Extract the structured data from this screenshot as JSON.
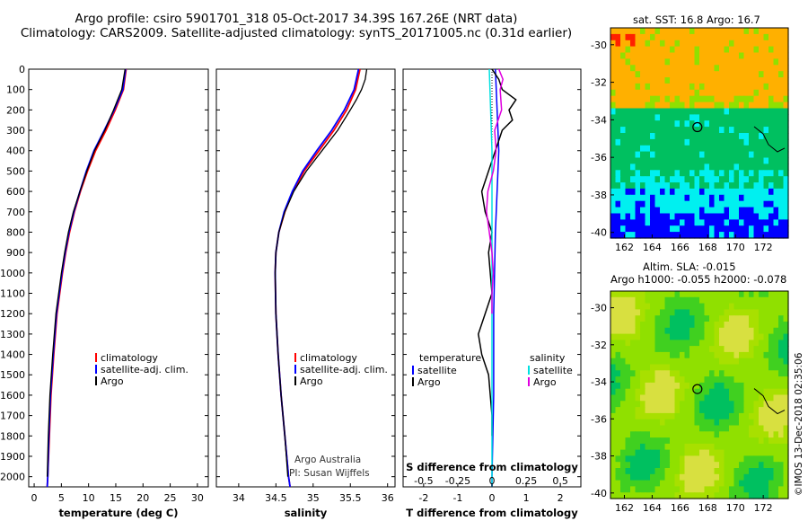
{
  "header": {
    "title_line1": "Argo profile: csiro 5901701_318 05-Oct-2017 34.39S 167.26E (NRT data)",
    "title_line2": "Climatology: CARS2009. Satellite-adjusted climatology: synTS_20171005.nc (0.31d earlier)"
  },
  "maps": {
    "sst_title": "sat. SST: 16.8 Argo: 16.7",
    "sla_title_line1": "Altim. SLA: -0.015",
    "sla_title_line2": "Argo h1000: -0.055 h2000: -0.078",
    "lon_ticks": [
      "162",
      "164",
      "166",
      "168",
      "170",
      "172"
    ],
    "lat_ticks": [
      "-30",
      "-32",
      "-34",
      "-36",
      "-38",
      "-40"
    ],
    "colors": {
      "warm": "#ffb000",
      "hot": "#ff2000",
      "green": "#00c060",
      "lightgreen": "#90e000",
      "cyan": "#00f0f0",
      "blue": "#0000ff"
    }
  },
  "credits": {
    "line1": "Argo Australia",
    "line2": "PI: Susan Wijffels",
    "imos": "©IMOS 13-Dec-2018 02:35:06"
  },
  "legends": {
    "temperature_panel": [
      "climatology",
      "satellite-adj. clim.",
      "Argo"
    ],
    "salinity_panel": [
      "climatology",
      "satellite-adj. clim.",
      "Argo"
    ],
    "diff_panel": {
      "temp_heading": "temperature",
      "sal_heading": "salinity",
      "temp_items": [
        "satellite",
        "Argo"
      ],
      "sal_items": [
        "satellite",
        "Argo"
      ]
    }
  },
  "chart_data": [
    {
      "type": "line",
      "name": "temperature",
      "xlabel": "temperature (deg C)",
      "ylabel": "",
      "xlim": [
        -1,
        32
      ],
      "ylim": [
        2050,
        0
      ],
      "xticks": [
        0,
        5,
        10,
        15,
        20,
        25,
        30
      ],
      "yticks": [
        0,
        100,
        200,
        300,
        400,
        500,
        600,
        700,
        800,
        900,
        1000,
        1100,
        1200,
        1300,
        1400,
        1500,
        1600,
        1700,
        1800,
        1900,
        2000
      ],
      "series": [
        {
          "name": "climatology",
          "color": "#ff0000",
          "depth": [
            0,
            100,
            200,
            300,
            400,
            500,
            600,
            700,
            800,
            900,
            1000,
            1200,
            1400,
            1600,
            1800,
            2000,
            2050
          ],
          "values": [
            16.9,
            16.4,
            14.9,
            13.2,
            11.3,
            9.8,
            8.5,
            7.4,
            6.5,
            5.8,
            5.2,
            4.2,
            3.6,
            3.1,
            2.8,
            2.5,
            2.4
          ]
        },
        {
          "name": "satellite-adj. clim.",
          "color": "#0000ff",
          "depth": [
            0,
            100,
            200,
            300,
            400,
            500,
            600,
            700,
            800,
            900,
            1000,
            1200,
            1400,
            1600,
            1800,
            2000,
            2050
          ],
          "values": [
            16.8,
            16.3,
            14.7,
            12.9,
            11.0,
            9.6,
            8.4,
            7.3,
            6.4,
            5.7,
            5.1,
            4.1,
            3.5,
            3.0,
            2.7,
            2.5,
            2.4
          ]
        },
        {
          "name": "Argo",
          "color": "#000000",
          "depth": [
            0,
            100,
            200,
            300,
            400,
            500,
            600,
            700,
            800,
            900,
            1000,
            1200,
            1400,
            1600,
            1800,
            2000
          ],
          "values": [
            16.7,
            16.1,
            14.6,
            13.0,
            11.1,
            9.7,
            8.4,
            7.2,
            6.3,
            5.6,
            5.0,
            4.0,
            3.4,
            2.9,
            2.6,
            2.4
          ]
        }
      ]
    },
    {
      "type": "line",
      "name": "salinity",
      "xlabel": "salinity",
      "ylabel": "",
      "xlim": [
        33.7,
        36.1
      ],
      "ylim": [
        2050,
        0
      ],
      "xticks": [
        34,
        34.5,
        35,
        35.5,
        36
      ],
      "xtick_labels": [
        "34",
        "34.5",
        "35",
        "35.5",
        "36"
      ],
      "series": [
        {
          "name": "climatology",
          "color": "#ff0000",
          "depth": [
            0,
            100,
            200,
            300,
            400,
            500,
            600,
            700,
            800,
            900,
            1000,
            1200,
            1400,
            1600,
            1800,
            2000,
            2050
          ],
          "values": [
            35.63,
            35.57,
            35.45,
            35.28,
            35.08,
            34.88,
            34.73,
            34.62,
            34.54,
            34.5,
            34.49,
            34.5,
            34.53,
            34.57,
            34.62,
            34.67,
            34.69
          ]
        },
        {
          "name": "satellite-adj. clim.",
          "color": "#0000ff",
          "depth": [
            0,
            100,
            200,
            300,
            400,
            500,
            600,
            700,
            800,
            900,
            1000,
            1200,
            1400,
            1600,
            1800,
            2000,
            2050
          ],
          "values": [
            35.61,
            35.55,
            35.42,
            35.25,
            35.05,
            34.86,
            34.72,
            34.61,
            34.54,
            34.5,
            34.49,
            34.5,
            34.53,
            34.57,
            34.62,
            34.67,
            34.69
          ]
        },
        {
          "name": "Argo",
          "color": "#000000",
          "depth": [
            0,
            50,
            100,
            150,
            200,
            300,
            400,
            500,
            600,
            700,
            800,
            900,
            1000,
            1200,
            1400,
            1600,
            1800,
            2000
          ],
          "values": [
            35.72,
            35.7,
            35.65,
            35.58,
            35.5,
            35.33,
            35.12,
            34.91,
            34.74,
            34.62,
            34.54,
            34.5,
            34.49,
            34.5,
            34.53,
            34.57,
            34.62,
            34.66
          ]
        }
      ]
    },
    {
      "type": "line",
      "name": "difference from climatology",
      "xlabel": "T difference from climatology",
      "xlabel_top": "S difference from climatology",
      "ylim": [
        2050,
        0
      ],
      "t_xlim": [
        -2.6,
        2.6
      ],
      "t_xticks": [
        -2,
        -1,
        0,
        1,
        2
      ],
      "s_xlim": [
        -0.65,
        0.65
      ],
      "s_xticks": [
        -0.5,
        -0.25,
        0,
        0.25,
        0.5
      ],
      "s_xtick_labels": [
        "-0.5",
        "-0.25",
        "0",
        "0.25",
        "0.5"
      ],
      "series": [
        {
          "name": "temperature satellite",
          "axis": "T",
          "color": "#0000ff",
          "depth": [
            0,
            200,
            400,
            800,
            1200,
            1600,
            2000,
            2050
          ],
          "values": [
            0.1,
            0.15,
            0.2,
            0.1,
            0.05,
            0.05,
            0.0,
            0.0
          ]
        },
        {
          "name": "temperature Argo",
          "axis": "T",
          "color": "#000000",
          "depth": [
            0,
            50,
            100,
            150,
            200,
            250,
            300,
            400,
            500,
            600,
            700,
            800,
            900,
            1000,
            1100,
            1200,
            1300,
            1400,
            1500,
            1600,
            1700,
            1800
          ],
          "values": [
            0.0,
            0.2,
            0.3,
            0.7,
            0.5,
            0.6,
            0.3,
            0.1,
            -0.1,
            -0.3,
            -0.2,
            0.0,
            -0.1,
            -0.05,
            0.0,
            -0.2,
            -0.4,
            -0.3,
            -0.1,
            -0.05,
            0.0,
            0.0
          ]
        },
        {
          "name": "salinity satellite",
          "axis": "S",
          "color": "#00e0e0",
          "depth": [
            0,
            200,
            400,
            800,
            1200,
            1600,
            2000,
            2050
          ],
          "values": [
            -0.02,
            -0.01,
            0.0,
            0.0,
            0.0,
            0.0,
            0.0,
            0.0
          ]
        },
        {
          "name": "salinity Argo",
          "axis": "S",
          "color": "#e000e0",
          "depth": [
            0,
            50,
            100,
            200,
            300,
            400,
            500,
            600,
            700,
            800,
            900,
            1000,
            1100,
            1200
          ],
          "values": [
            0.05,
            0.08,
            0.06,
            0.07,
            0.02,
            0.03,
            0.01,
            -0.03,
            -0.04,
            -0.02,
            0.0,
            0.01,
            0.0,
            0.0
          ]
        }
      ]
    }
  ]
}
